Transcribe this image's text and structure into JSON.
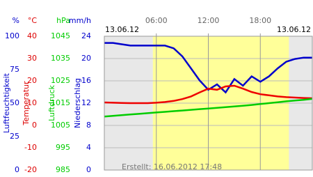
{
  "chart_data": {
    "type": "line",
    "date_left": "13.06.12",
    "date_right": "13.06.12",
    "created": "Erstellt: 16.06.2012 17:48",
    "x": [
      0,
      1,
      2,
      3,
      4,
      5,
      6,
      7,
      8,
      9,
      10,
      11,
      12,
      13,
      14,
      15,
      16,
      17,
      18,
      19,
      20,
      21,
      22,
      23,
      24
    ],
    "xlim": [
      0,
      24
    ],
    "xticks": [
      {
        "value": 6,
        "label": "06:00"
      },
      {
        "value": 12,
        "label": "12:00"
      },
      {
        "value": 18,
        "label": "18:00"
      }
    ],
    "daylight": [
      5.6,
      21.3
    ],
    "axes": [
      {
        "unit": "%",
        "title": "Luftfeuchtigkeit",
        "color": "#0000cc",
        "lim": [
          0,
          100
        ],
        "ticks": [
          0,
          25,
          50,
          75,
          100
        ],
        "grid": false
      },
      {
        "unit": "°C",
        "title": "Temperatur",
        "color": "#dd0000",
        "lim": [
          -20,
          40
        ],
        "ticks": [
          -20,
          -10,
          0,
          10,
          20,
          30,
          40
        ],
        "grid": true
      },
      {
        "unit": "hPa",
        "title": "Luftdruck",
        "color": "#00cc00",
        "lim": [
          985,
          1045
        ],
        "ticks": [
          985,
          995,
          1005,
          1015,
          1025,
          1035,
          1045
        ],
        "grid": false
      },
      {
        "unit": "mm/h",
        "title": "Niederschlag",
        "color": "#0000cc",
        "lim": [
          0,
          24
        ],
        "ticks": [
          0,
          4,
          8,
          12,
          16,
          20,
          24
        ],
        "grid": false
      }
    ],
    "series": [
      {
        "name": "Luftfeuchtigkeit",
        "axis": 0,
        "color": "#0000cc",
        "values": [
          95,
          95,
          94,
          93,
          93,
          93,
          93,
          93,
          91,
          85,
          76,
          67,
          60,
          64,
          58,
          68,
          63,
          70,
          66,
          70,
          76,
          81,
          83,
          84,
          84
        ]
      },
      {
        "name": "Temperatur",
        "axis": 1,
        "color": "#ee0000",
        "values": [
          10.3,
          10.2,
          10.1,
          10,
          10,
          10,
          10.2,
          10.5,
          11,
          11.8,
          13,
          14.8,
          16.5,
          16,
          17.5,
          17.8,
          16.5,
          15,
          14,
          13.5,
          13,
          12.7,
          12.5,
          12.3,
          12.2
        ]
      },
      {
        "name": "Luftdruck",
        "axis": 2,
        "color": "#00cc00",
        "values": [
          1009.0,
          1009.3,
          1009.6,
          1009.9,
          1010.2,
          1010.5,
          1010.8,
          1011.1,
          1011.4,
          1011.7,
          1012.0,
          1012.3,
          1012.6,
          1012.9,
          1013.2,
          1013.5,
          1013.8,
          1014.2,
          1014.6,
          1015.0,
          1015.4,
          1015.8,
          1016.2,
          1016.5,
          1016.9
        ]
      }
    ]
  }
}
